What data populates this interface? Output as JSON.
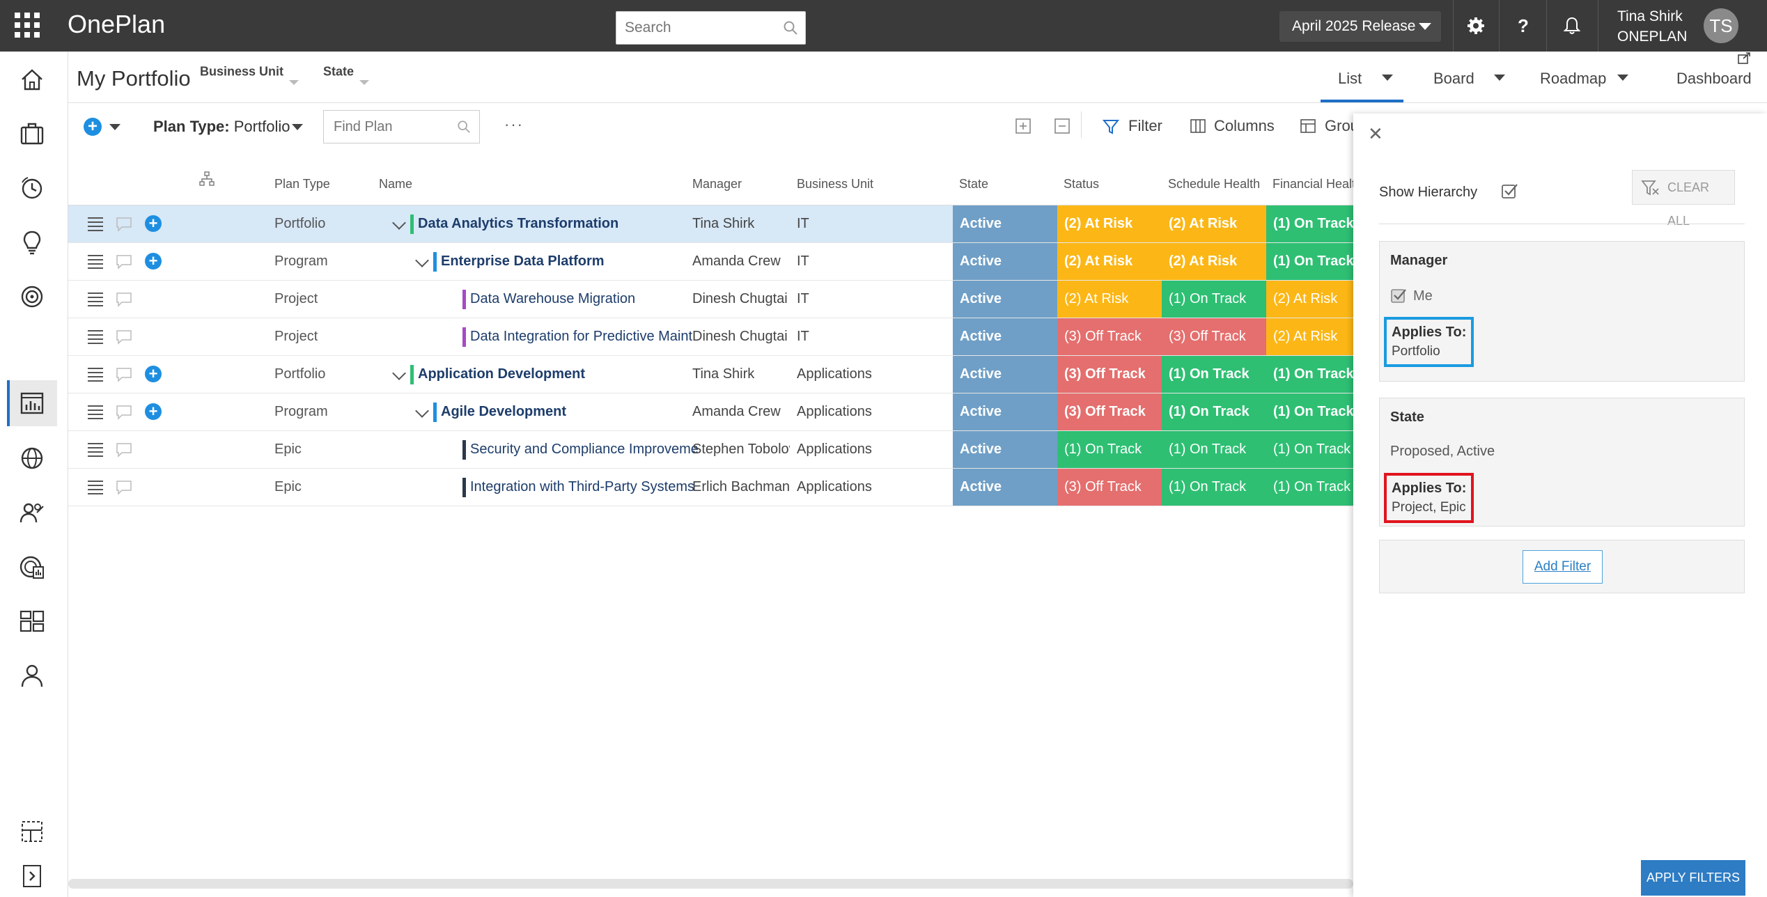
{
  "topbar": {
    "app_name": "OnePlan",
    "search_placeholder": "Search",
    "release_label": "April 2025 Release",
    "user_name": "Tina Shirk",
    "user_org": "ONEPLAN",
    "avatar_initials": "TS"
  },
  "page": {
    "title": "My Portfolio",
    "filters": [
      "Business Unit",
      "State"
    ],
    "views": [
      "List",
      "Board",
      "Roadmap",
      "Dashboard"
    ],
    "active_view": "List"
  },
  "toolbar": {
    "plan_type_label": "Plan Type:",
    "plan_type_value": "Portfolio",
    "find_placeholder": "Find Plan",
    "more": "···",
    "filter_label": "Filter",
    "columns_label": "Columns",
    "group_label": "Grou"
  },
  "table": {
    "headers": [
      "Plan Type",
      "Name",
      "Manager",
      "Business Unit",
      "State",
      "Status",
      "Schedule Health",
      "Financial Healt"
    ],
    "rows": [
      {
        "type": "Portfolio",
        "name": "Data Analytics Transformation",
        "manager": "Tina Shirk",
        "bu": "IT",
        "state": "Active",
        "status": "(2) At Risk",
        "schedule": "(2) At Risk",
        "financial": "(1) On Track"
      },
      {
        "type": "Program",
        "name": "Enterprise Data Platform",
        "manager": "Amanda Crew",
        "bu": "IT",
        "state": "Active",
        "status": "(2) At Risk",
        "schedule": "(2) At Risk",
        "financial": "(1) On Track"
      },
      {
        "type": "Project",
        "name": "Data Warehouse Migration",
        "manager": "Dinesh Chugtai",
        "bu": "IT",
        "state": "Active",
        "status": "(2) At Risk",
        "schedule": "(1) On Track",
        "financial": "(2) At Risk"
      },
      {
        "type": "Project",
        "name": "Data Integration for Predictive Maint",
        "manager": "Dinesh Chugtai",
        "bu": "IT",
        "state": "Active",
        "status": "(3) Off Track",
        "schedule": "(3) Off Track",
        "financial": "(2) At Risk"
      },
      {
        "type": "Portfolio",
        "name": "Application Development",
        "manager": "Tina Shirk",
        "bu": "Applications",
        "state": "Active",
        "status": "(3) Off Track",
        "schedule": "(1) On Track",
        "financial": "(1) On Track"
      },
      {
        "type": "Program",
        "name": "Agile Development",
        "manager": "Amanda Crew",
        "bu": "Applications",
        "state": "Active",
        "status": "(3) Off Track",
        "schedule": "(1) On Track",
        "financial": "(1) On Track"
      },
      {
        "type": "Epic",
        "name": "Security and Compliance Improveme",
        "manager": "Stephen Tobolov",
        "bu": "Applications",
        "state": "Active",
        "status": "(1) On Track",
        "schedule": "(1) On Track",
        "financial": "(1) On Track"
      },
      {
        "type": "Epic",
        "name": "Integration with Third-Party Systems",
        "manager": "Erlich Bachman",
        "bu": "Applications",
        "state": "Active",
        "status": "(3) Off Track",
        "schedule": "(1) On Track",
        "financial": "(1) On Track"
      }
    ]
  },
  "filter_panel": {
    "show_hierarchy_label": "Show Hierarchy",
    "clear_all_label": "CLEAR ALL",
    "manager": {
      "title": "Manager",
      "value": "Me",
      "applies_label": "Applies To:",
      "applies_value": "Portfolio"
    },
    "state": {
      "title": "State",
      "value": "Proposed, Active",
      "applies_label": "Applies To:",
      "applies_value": "Project, Epic"
    },
    "add_filter_label": "Add Filter",
    "apply_label": "APPLY FILTERS"
  },
  "colors": {
    "at_risk": "#fcb716",
    "off_track": "#e46f6e",
    "on_track": "#2ebf73",
    "state": "#6f9fc6",
    "accent": "#1e6fc7",
    "manager_applies_border": "#1a9be0",
    "state_applies_border": "#e0141e"
  }
}
